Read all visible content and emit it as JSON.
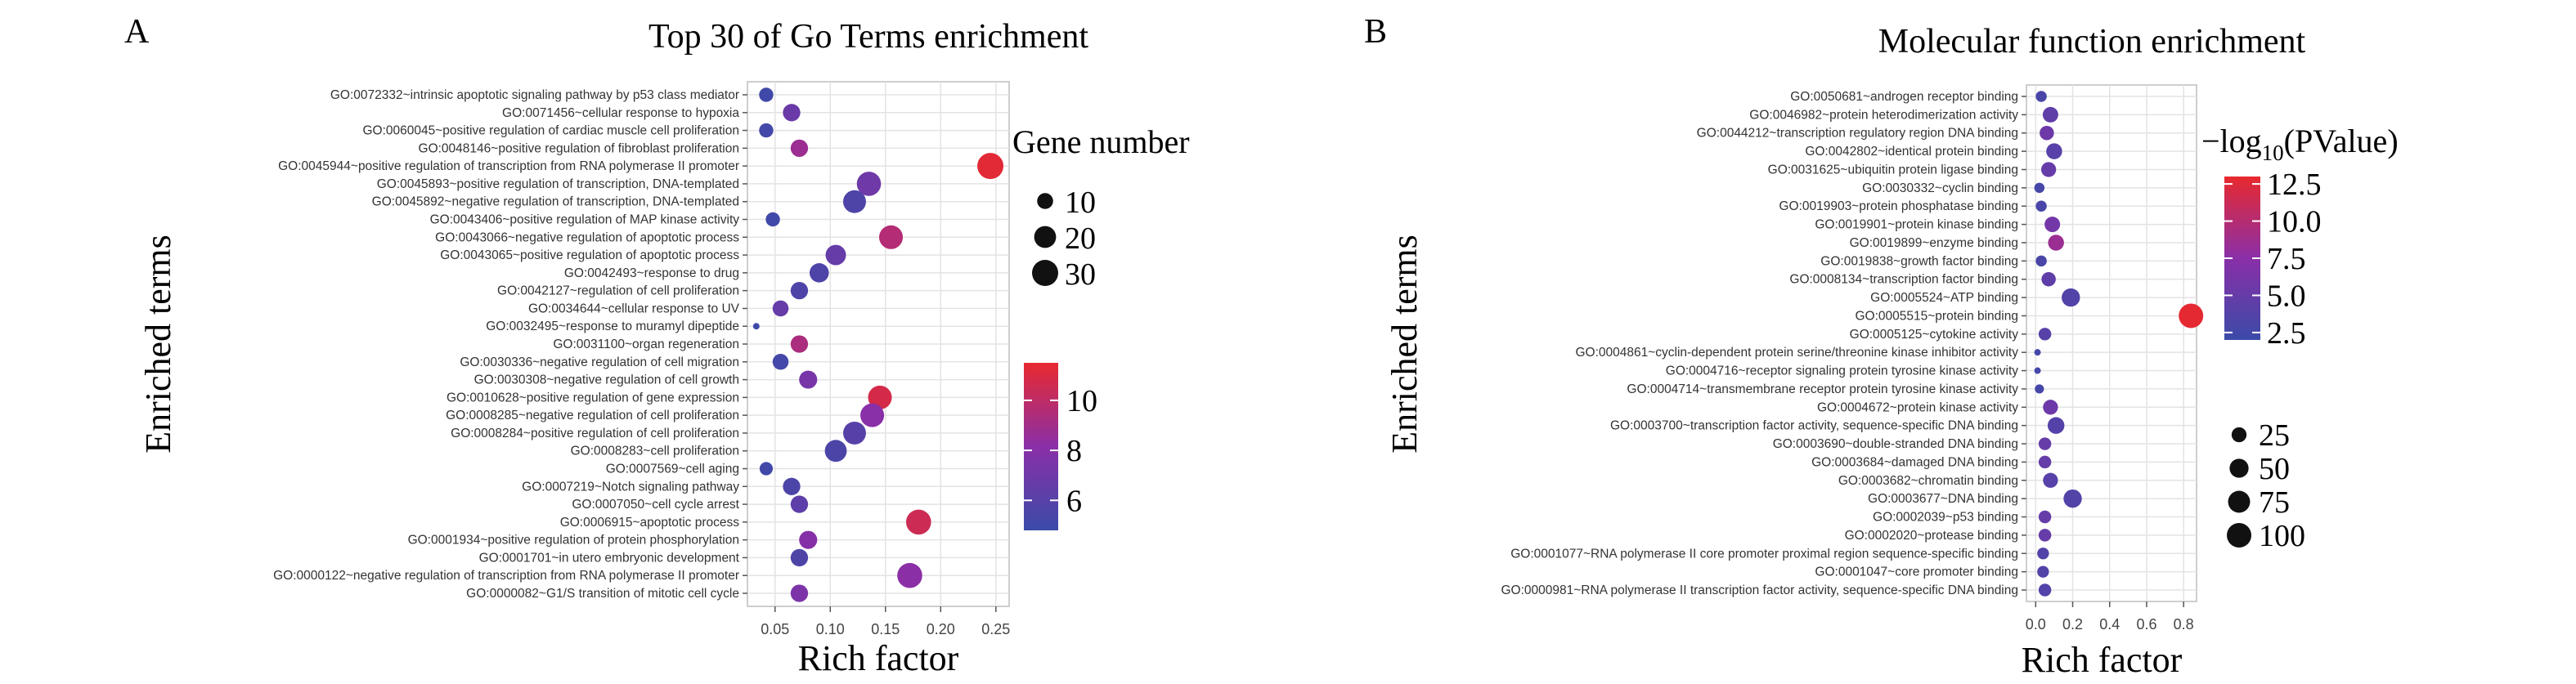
{
  "chart_data": [
    {
      "panel_label": "A",
      "type": "scatter",
      "title": "Top 30 of Go Terms enrichment",
      "xlabel": "Rich factor",
      "ylabel": "Enriched terms",
      "xlim": [
        0.025,
        0.262
      ],
      "xticks": [
        0.05,
        0.1,
        0.15,
        0.2,
        0.25
      ],
      "xtick_labels": [
        "0.05",
        "0.10",
        "0.15",
        "0.20",
        "0.25"
      ],
      "grid": true,
      "size_legend": {
        "title": "Gene number",
        "values": [
          10,
          20,
          30
        ],
        "labels": [
          "10",
          "20",
          "30"
        ]
      },
      "color_legend": {
        "range": [
          4.8,
          11.5
        ],
        "ticks": [
          6,
          8,
          10
        ],
        "labels": [
          "6",
          "8",
          "10"
        ],
        "low_color": "#3b4ba8",
        "mid_color": "#8a2fa8",
        "high_color": "#e8292f"
      },
      "categories": [
        "GO:0072332~intrinsic apoptotic signaling pathway by p53 class mediator",
        "GO:0071456~cellular response to hypoxia",
        "GO:0060045~positive regulation of cardiac muscle cell proliferation",
        "GO:0048146~positive regulation of fibroblast proliferation",
        "GO:0045944~positive regulation of transcription from RNA polymerase II promoter",
        "GO:0045893~positive regulation of transcription, DNA-templated",
        "GO:0045892~negative regulation of transcription, DNA-templated",
        "GO:0043406~positive regulation of MAP kinase activity",
        "GO:0043066~negative regulation of apoptotic process",
        "GO:0043065~positive regulation of apoptotic process",
        "GO:0042493~response to drug",
        "GO:0042127~regulation of cell proliferation",
        "GO:0034644~cellular response to UV",
        "GO:0032495~response to muramyl dipeptide",
        "GO:0031100~organ regeneration",
        "GO:0030336~negative regulation of cell migration",
        "GO:0030308~negative regulation of cell growth",
        "GO:0010628~positive regulation of gene expression",
        "GO:0008285~negative regulation of cell proliferation",
        "GO:0008284~positive regulation of cell proliferation",
        "GO:0008283~cell proliferation",
        "GO:0007569~cell aging",
        "GO:0007219~Notch signaling pathway",
        "GO:0007050~cell cycle arrest",
        "GO:0006915~apoptotic process",
        "GO:0001934~positive regulation of protein phosphorylation",
        "GO:0001701~in utero embryonic development",
        "GO:0000122~negative regulation of transcription from RNA polymerase II promoter",
        "GO:0000082~G1/S transition of mitotic cell cycle"
      ],
      "points": [
        {
          "x": 0.042,
          "size": 8,
          "color": 5.0
        },
        {
          "x": 0.065,
          "size": 12,
          "color": 6.8
        },
        {
          "x": 0.042,
          "size": 8,
          "color": 5.2
        },
        {
          "x": 0.072,
          "size": 12,
          "color": 8.8
        },
        {
          "x": 0.245,
          "size": 30,
          "color": 11.3
        },
        {
          "x": 0.135,
          "size": 25,
          "color": 7.0
        },
        {
          "x": 0.122,
          "size": 22,
          "color": 5.6
        },
        {
          "x": 0.048,
          "size": 8,
          "color": 5.0
        },
        {
          "x": 0.155,
          "size": 24,
          "color": 9.6
        },
        {
          "x": 0.105,
          "size": 17,
          "color": 6.6
        },
        {
          "x": 0.09,
          "size": 15,
          "color": 5.6
        },
        {
          "x": 0.072,
          "size": 12,
          "color": 5.6
        },
        {
          "x": 0.055,
          "size": 10,
          "color": 6.6
        },
        {
          "x": 0.033,
          "size": 4,
          "color": 5.0
        },
        {
          "x": 0.072,
          "size": 12,
          "color": 9.3
        },
        {
          "x": 0.055,
          "size": 10,
          "color": 5.2
        },
        {
          "x": 0.08,
          "size": 13,
          "color": 7.4
        },
        {
          "x": 0.145,
          "size": 24,
          "color": 10.8
        },
        {
          "x": 0.138,
          "size": 24,
          "color": 8.1
        },
        {
          "x": 0.122,
          "size": 22,
          "color": 6.0
        },
        {
          "x": 0.105,
          "size": 20,
          "color": 5.5
        },
        {
          "x": 0.042,
          "size": 7,
          "color": 5.0
        },
        {
          "x": 0.065,
          "size": 12,
          "color": 5.5
        },
        {
          "x": 0.072,
          "size": 12,
          "color": 6.3
        },
        {
          "x": 0.18,
          "size": 27,
          "color": 10.5
        },
        {
          "x": 0.08,
          "size": 13,
          "color": 8.0
        },
        {
          "x": 0.072,
          "size": 12,
          "color": 5.6
        },
        {
          "x": 0.172,
          "size": 27,
          "color": 8.2
        },
        {
          "x": 0.072,
          "size": 12,
          "color": 7.6
        }
      ]
    },
    {
      "panel_label": "B",
      "type": "scatter",
      "title": "Molecular function enrichment",
      "xlabel": "Rich factor",
      "ylabel": "Enriched terms",
      "xlim": [
        -0.05,
        0.87
      ],
      "xticks": [
        0.0,
        0.2,
        0.4,
        0.6,
        0.8
      ],
      "xtick_labels": [
        "0.0",
        "0.2",
        "0.4",
        "0.6",
        "0.8"
      ],
      "grid": true,
      "color_legend": {
        "title_prefix": "−log",
        "title_sub": "10",
        "title_suffix": "(PValue)",
        "range": [
          2.0,
          13.0
        ],
        "ticks": [
          2.5,
          5.0,
          7.5,
          10.0,
          12.5
        ],
        "labels": [
          "2.5",
          "5.0",
          "7.5",
          "10.0",
          "12.5"
        ],
        "low_color": "#3b4ba8",
        "mid_color": "#8a2fa8",
        "high_color": "#e8292f"
      },
      "size_legend": {
        "values": [
          25,
          50,
          75,
          100
        ],
        "labels": [
          "25",
          "50",
          "75",
          "100"
        ]
      },
      "categories": [
        "GO:0050681~androgen receptor binding",
        "GO:0046982~protein heterodimerization activity",
        "GO:0044212~transcription regulatory region DNA binding",
        "GO:0042802~identical protein binding",
        "GO:0031625~ubiquitin protein ligase binding",
        "GO:0030332~cyclin binding",
        "GO:0019903~protein phosphatase binding",
        "GO:0019901~protein kinase binding",
        "GO:0019899~enzyme binding",
        "GO:0019838~growth factor binding",
        "GO:0008134~transcription factor binding",
        "GO:0005524~ATP binding",
        "GO:0005515~protein binding",
        "GO:0005125~cytokine activity",
        "GO:0004861~cyclin-dependent protein serine/threonine kinase inhibitor activity",
        "GO:0004716~receptor signaling protein tyrosine kinase activity",
        "GO:0004714~transmembrane receptor protein tyrosine kinase activity",
        "GO:0004672~protein kinase activity",
        "GO:0003700~transcription factor activity, sequence-specific DNA binding",
        "GO:0003690~double-stranded DNA binding",
        "GO:0003684~damaged DNA binding",
        "GO:0003682~chromatin binding",
        "GO:0003677~DNA binding",
        "GO:0002039~p53 binding",
        "GO:0002020~protease binding",
        "GO:0001077~RNA polymerase II core promoter proximal region sequence-specific binding",
        "GO:0001047~core promoter binding",
        "GO:0000981~RNA polymerase II transcription factor activity, sequence-specific DNA binding"
      ],
      "points": [
        {
          "x": 0.03,
          "size": 10,
          "color": 3.0
        },
        {
          "x": 0.08,
          "size": 28,
          "color": 4.5
        },
        {
          "x": 0.06,
          "size": 22,
          "color": 5.5
        },
        {
          "x": 0.1,
          "size": 30,
          "color": 4.0
        },
        {
          "x": 0.07,
          "size": 25,
          "color": 5.0
        },
        {
          "x": 0.02,
          "size": 8,
          "color": 2.8
        },
        {
          "x": 0.03,
          "size": 10,
          "color": 3.0
        },
        {
          "x": 0.09,
          "size": 28,
          "color": 6.0
        },
        {
          "x": 0.11,
          "size": 30,
          "color": 8.5
        },
        {
          "x": 0.03,
          "size": 10,
          "color": 3.0
        },
        {
          "x": 0.07,
          "size": 22,
          "color": 4.5
        },
        {
          "x": 0.19,
          "size": 45,
          "color": 3.5
        },
        {
          "x": 0.84,
          "size": 100,
          "color": 12.8
        },
        {
          "x": 0.05,
          "size": 15,
          "color": 4.0
        },
        {
          "x": 0.01,
          "size": 4,
          "color": 2.6
        },
        {
          "x": 0.01,
          "size": 4,
          "color": 2.6
        },
        {
          "x": 0.02,
          "size": 6,
          "color": 2.7
        },
        {
          "x": 0.08,
          "size": 25,
          "color": 5.5
        },
        {
          "x": 0.11,
          "size": 35,
          "color": 3.8
        },
        {
          "x": 0.05,
          "size": 15,
          "color": 5.0
        },
        {
          "x": 0.05,
          "size": 15,
          "color": 5.0
        },
        {
          "x": 0.08,
          "size": 25,
          "color": 4.0
        },
        {
          "x": 0.2,
          "size": 45,
          "color": 3.5
        },
        {
          "x": 0.05,
          "size": 15,
          "color": 5.0
        },
        {
          "x": 0.05,
          "size": 15,
          "color": 5.0
        },
        {
          "x": 0.04,
          "size": 12,
          "color": 3.5
        },
        {
          "x": 0.04,
          "size": 12,
          "color": 3.5
        },
        {
          "x": 0.05,
          "size": 15,
          "color": 3.5
        }
      ]
    }
  ]
}
